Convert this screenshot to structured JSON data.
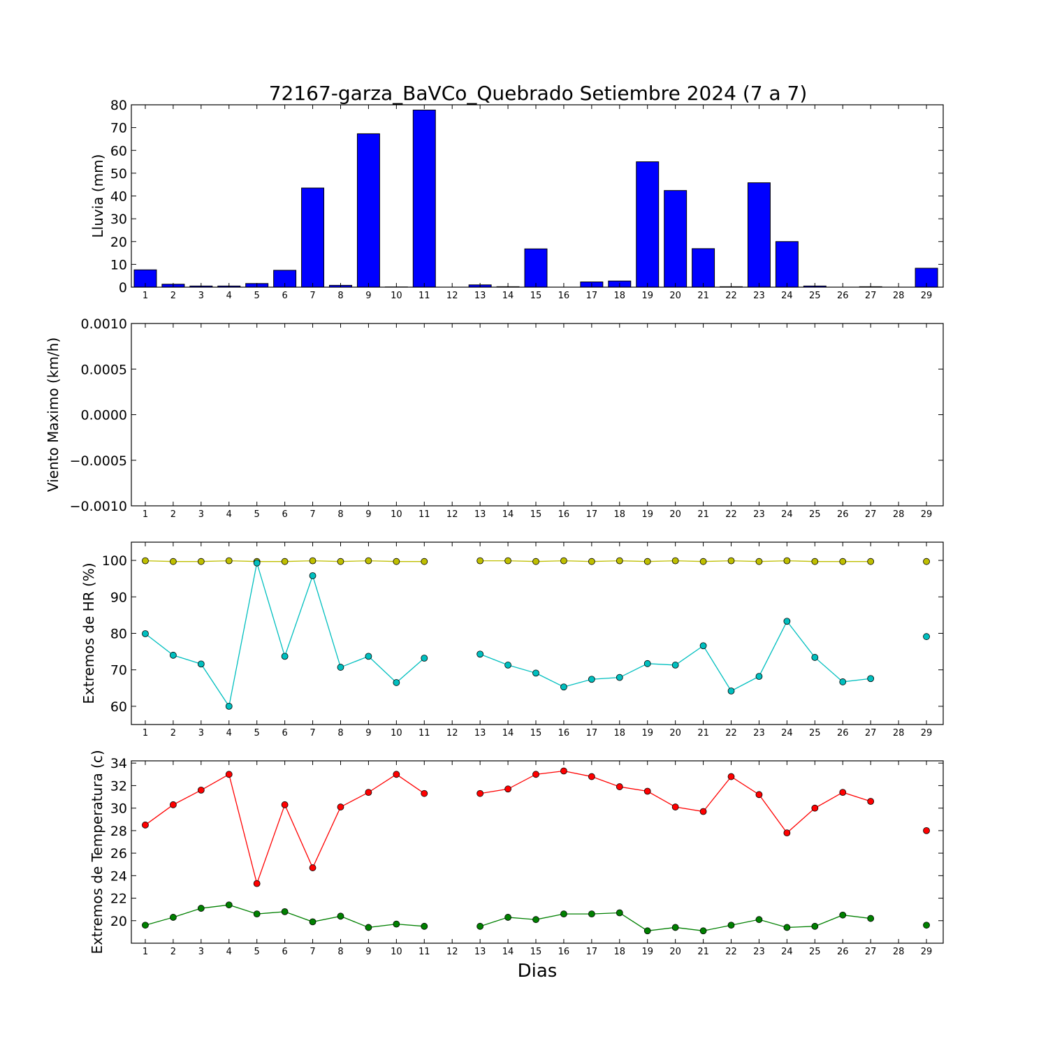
{
  "figure": {
    "title": "72167-garza_BaVCo_Quebrado Setiembre 2024  (7 a 7)",
    "xlabel": "Dias"
  },
  "chart_data": [
    {
      "type": "bar",
      "ylabel": "Lluvia (mm)",
      "ylim": [
        0,
        80
      ],
      "yticks": [
        "0",
        "10",
        "20",
        "30",
        "40",
        "50",
        "60",
        "70",
        "80"
      ],
      "xticks": [
        "1",
        "2",
        "3",
        "4",
        "5",
        "6",
        "7",
        "8",
        "9",
        "10",
        "11",
        "12",
        "13",
        "14",
        "15",
        "16",
        "17",
        "18",
        "19",
        "20",
        "21",
        "22",
        "23",
        "24",
        "25",
        "26",
        "27",
        "28",
        "29"
      ],
      "color": "#0000ff",
      "x": [
        1,
        2,
        3,
        4,
        5,
        6,
        7,
        8,
        9,
        10,
        11,
        12,
        13,
        14,
        15,
        16,
        17,
        18,
        19,
        20,
        21,
        22,
        23,
        24,
        25,
        26,
        27,
        28,
        29
      ],
      "values": [
        7.6,
        1.3,
        0.5,
        0.5,
        1.6,
        7.4,
        43.5,
        0.8,
        67.3,
        0.1,
        77.7,
        0,
        1.0,
        0.2,
        16.8,
        0,
        2.3,
        2.7,
        55.0,
        42.4,
        16.9,
        0.2,
        45.8,
        20.0,
        0.5,
        0,
        0.2,
        0,
        8.3
      ]
    },
    {
      "type": "line",
      "ylabel": "Viento Maximo (km/h)",
      "ylim": [
        -0.001,
        0.001
      ],
      "yticks": [
        "−0.0010",
        "−0.0005",
        "0.0000",
        "0.0005",
        "0.0010"
      ],
      "xticks": [
        "1",
        "2",
        "3",
        "4",
        "5",
        "6",
        "7",
        "8",
        "9",
        "10",
        "11",
        "12",
        "13",
        "14",
        "15",
        "16",
        "17",
        "18",
        "19",
        "20",
        "21",
        "22",
        "23",
        "24",
        "25",
        "26",
        "27",
        "28",
        "29"
      ],
      "series": []
    },
    {
      "type": "line",
      "ylabel": "Extremos de HR (%)",
      "ylim": [
        55,
        105
      ],
      "yticks": [
        "60",
        "70",
        "80",
        "90",
        "100"
      ],
      "xticks": [
        "1",
        "2",
        "3",
        "4",
        "5",
        "6",
        "7",
        "8",
        "9",
        "10",
        "11",
        "12",
        "13",
        "14",
        "15",
        "16",
        "17",
        "18",
        "19",
        "20",
        "21",
        "22",
        "23",
        "24",
        "25",
        "26",
        "27",
        "28",
        "29"
      ],
      "series": [
        {
          "color": "#bfbf00",
          "x": [
            1,
            2,
            3,
            4,
            5,
            6,
            7,
            8,
            9,
            10,
            11,
            12,
            13,
            14,
            15,
            16,
            17,
            18,
            19,
            20,
            21,
            22,
            23,
            24,
            25,
            26,
            27,
            28,
            29
          ],
          "values": [
            99.9,
            99.7,
            99.7,
            99.9,
            99.7,
            99.7,
            99.9,
            99.7,
            99.9,
            99.7,
            99.7,
            null,
            99.9,
            99.9,
            99.7,
            99.9,
            99.7,
            99.9,
            99.7,
            99.9,
            99.7,
            99.9,
            99.7,
            99.9,
            99.7,
            99.7,
            99.7,
            null,
            99.7
          ]
        },
        {
          "color": "#00bfbf",
          "x": [
            1,
            2,
            3,
            4,
            5,
            6,
            7,
            8,
            9,
            10,
            11,
            12,
            13,
            14,
            15,
            16,
            17,
            18,
            19,
            20,
            21,
            22,
            23,
            24,
            25,
            26,
            27,
            28,
            29
          ],
          "values": [
            79.9,
            74.0,
            71.6,
            60.0,
            99.3,
            73.7,
            95.8,
            70.7,
            73.7,
            66.5,
            73.2,
            null,
            74.3,
            71.3,
            69.1,
            65.3,
            67.4,
            67.9,
            71.7,
            71.3,
            76.6,
            64.2,
            68.2,
            83.3,
            73.4,
            66.7,
            67.6,
            null,
            79.1
          ]
        }
      ]
    },
    {
      "type": "line",
      "ylabel": "Extremos de Temperatura (c)",
      "ylim": [
        18,
        34.2
      ],
      "yticks": [
        "20",
        "22",
        "24",
        "26",
        "28",
        "30",
        "32",
        "34"
      ],
      "xticks": [
        "1",
        "2",
        "3",
        "4",
        "5",
        "6",
        "7",
        "8",
        "9",
        "10",
        "11",
        "12",
        "13",
        "14",
        "15",
        "16",
        "17",
        "18",
        "19",
        "20",
        "21",
        "22",
        "23",
        "24",
        "25",
        "26",
        "27",
        "28",
        "29"
      ],
      "series": [
        {
          "color": "#ff0000",
          "x": [
            1,
            2,
            3,
            4,
            5,
            6,
            7,
            8,
            9,
            10,
            11,
            12,
            13,
            14,
            15,
            16,
            17,
            18,
            19,
            20,
            21,
            22,
            23,
            24,
            25,
            26,
            27,
            28,
            29
          ],
          "values": [
            28.5,
            30.3,
            31.6,
            33.0,
            23.3,
            30.3,
            24.7,
            30.1,
            31.4,
            33.0,
            31.3,
            null,
            31.3,
            31.7,
            33.0,
            33.3,
            32.8,
            31.9,
            31.5,
            30.1,
            29.7,
            32.8,
            31.2,
            27.8,
            30.0,
            31.4,
            30.6,
            null,
            28.0
          ]
        },
        {
          "color": "#008000",
          "x": [
            1,
            2,
            3,
            4,
            5,
            6,
            7,
            8,
            9,
            10,
            11,
            12,
            13,
            14,
            15,
            16,
            17,
            18,
            19,
            20,
            21,
            22,
            23,
            24,
            25,
            26,
            27,
            28,
            29
          ],
          "values": [
            19.6,
            20.3,
            21.1,
            21.4,
            20.6,
            20.8,
            19.9,
            20.4,
            19.4,
            19.7,
            19.5,
            null,
            19.5,
            20.3,
            20.1,
            20.6,
            20.6,
            20.7,
            19.1,
            19.4,
            19.1,
            19.6,
            20.1,
            19.4,
            19.5,
            20.5,
            20.2,
            null,
            19.6
          ]
        }
      ]
    }
  ]
}
